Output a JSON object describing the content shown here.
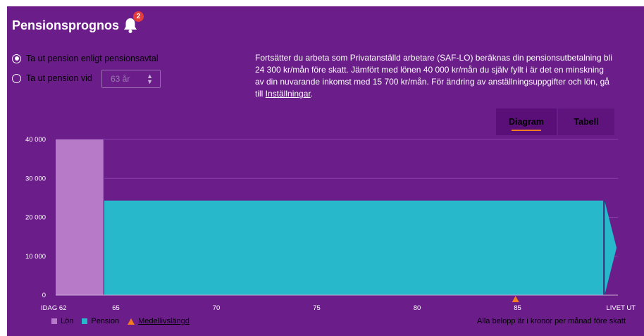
{
  "widget": {
    "title": "Pensionsprognos",
    "notification_count": "2"
  },
  "options": {
    "radio_agreement_label": "Ta ut pension enligt pensionsavtal",
    "radio_age_label": "Ta ut pension vid",
    "selected": "agreement",
    "age_select_value": "63 år"
  },
  "info": {
    "text": "Fortsätter du arbeta som Privatanställd arbetare (SAF-LO) beräknas din pensionsutbetalning bli 24 300 kr/mån före skatt. Jämfört med lönen 40 000 kr/mån du själv fyllt i är det en minskning av din nuvarande inkomst med 15 700 kr/mån. För ändring av anställningsuppgifter och lön, gå till ",
    "link_label": "Inställningar",
    "suffix": "."
  },
  "tabs": [
    {
      "label": "Diagram",
      "active": true
    },
    {
      "label": "Tabell",
      "active": false
    }
  ],
  "chart_data": {
    "type": "area",
    "y_ticks": [
      "40 000",
      "30 000",
      "20 000",
      "10 000",
      "0"
    ],
    "ylim": [
      0,
      40000
    ],
    "xlim": [
      62,
      90
    ],
    "x_ticks": [
      {
        "label": "IDAG 62",
        "age": 62
      },
      {
        "label": "65",
        "age": 65
      },
      {
        "label": "70",
        "age": 70
      },
      {
        "label": "75",
        "age": 75
      },
      {
        "label": "80",
        "age": 80
      },
      {
        "label": "85",
        "age": 85
      },
      {
        "label": "LIVET UT",
        "age": 90
      }
    ],
    "series": [
      {
        "name": "Lön",
        "color": "#b67ac8",
        "from_age": 62,
        "to_age": 64.4,
        "value": 40000
      },
      {
        "name": "Pension",
        "color": "#28b8cc",
        "from_age": 64.4,
        "to_age": 89.3,
        "value": 24300
      }
    ],
    "life_expectancy_age": 84.9,
    "life_expectancy_label": "Medellivslängd"
  },
  "colors": {
    "background": "#6b1d8a",
    "lon": "#b67ac8",
    "pension": "#28b8cc",
    "medellivslangd": "#f47b20"
  },
  "legend": {
    "lon": "Lön",
    "pension": "Pension",
    "medellivslangd": "Medellivslängd"
  },
  "footnote": "Alla belopp är i kronor per månad före skatt"
}
